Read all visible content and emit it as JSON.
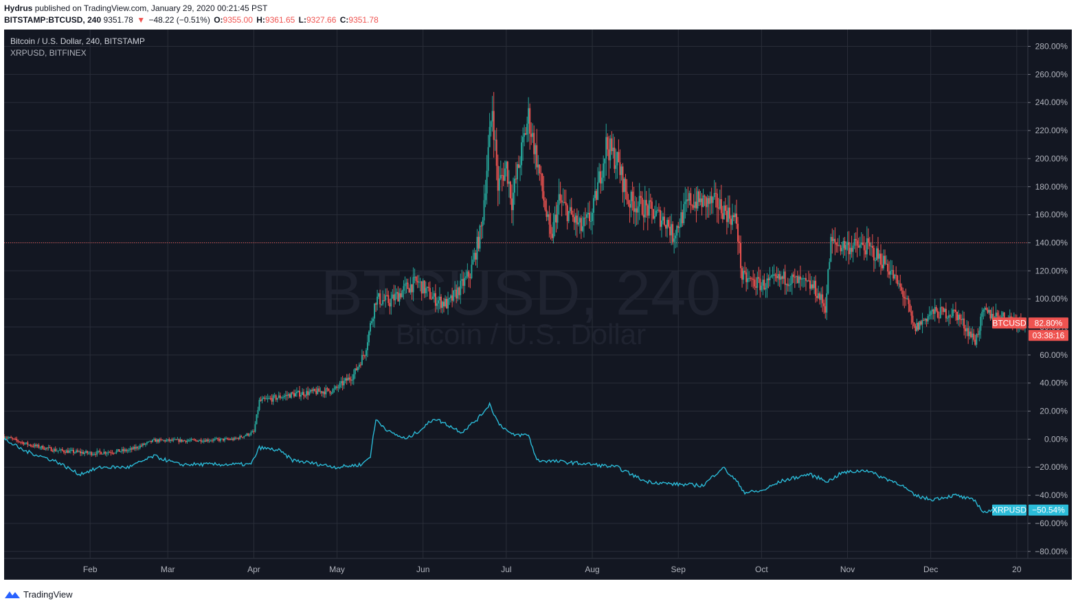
{
  "header": {
    "author": "Hydrus",
    "published_text": "published on TradingView.com, January 29, 2020 00:21:45 PST",
    "symbol_interval": "BITSTAMP:BTCUSD, 240",
    "last_price": "9351.78",
    "change_arrow": "▼",
    "change": "−48.22 (−0.51%)",
    "open_label": "O:",
    "open": "9355.00",
    "high_label": "H:",
    "high": "9361.65",
    "low_label": "L:",
    "low": "9327.66",
    "close_label": "C:",
    "close": "9351.78"
  },
  "legend": {
    "main": "Bitcoin / U.S. Dollar, 240, BITSTAMP",
    "compare": "XRPUSD, BITFINEX"
  },
  "watermark": {
    "line1": "BTCUSD, 240",
    "line2": "Bitcoin / U.S. Dollar"
  },
  "colors": {
    "background": "#131722",
    "grid": "#2a2e39",
    "text": "#b2b5be",
    "btc_up": "#26a69a",
    "btc_down": "#ef5350",
    "xrp": "#2bbcd9",
    "price_line": "#ef5350"
  },
  "footer": {
    "brand": "TradingView",
    "icon": "tradingview-logo-icon"
  },
  "chart_data": [
    {
      "type": "candlestick",
      "series_name": "BTCUSD",
      "y_unit": "percent change",
      "ylim": [
        -85,
        292
      ],
      "y_ticks": [
        "280.00%",
        "260.00%",
        "240.00%",
        "220.00%",
        "200.00%",
        "180.00%",
        "160.00%",
        "140.00%",
        "120.00%",
        "100.00%",
        "80.00%",
        "60.00%",
        "40.00%",
        "20.00%",
        "0.00%",
        "−20.00%",
        "−40.00%",
        "−60.00%",
        "−80.00%"
      ],
      "y_tick_values": [
        280,
        260,
        240,
        220,
        200,
        180,
        160,
        140,
        120,
        100,
        80,
        60,
        40,
        20,
        0,
        -20,
        -40,
        -60,
        -80
      ],
      "x_range": [
        "2019-01-01",
        "2020-01-05"
      ],
      "x_ticks": [
        {
          "label": "Feb",
          "date": "2019-02-01"
        },
        {
          "label": "Mar",
          "date": "2019-03-01"
        },
        {
          "label": "Apr",
          "date": "2019-04-01"
        },
        {
          "label": "May",
          "date": "2019-05-01"
        },
        {
          "label": "Jun",
          "date": "2019-06-01"
        },
        {
          "label": "Jul",
          "date": "2019-07-01"
        },
        {
          "label": "Aug",
          "date": "2019-08-01"
        },
        {
          "label": "Sep",
          "date": "2019-09-01"
        },
        {
          "label": "Oct",
          "date": "2019-10-01"
        },
        {
          "label": "Nov",
          "date": "2019-11-01"
        },
        {
          "label": "Dec",
          "date": "2019-12-01"
        },
        {
          "label": "20",
          "date": "2020-01-01"
        }
      ],
      "grid": true,
      "horizontal_line": 140,
      "last_label": "BTCUSD",
      "last_value_label": "82.80%",
      "countdown_label": "03:38:16",
      "last_value": 82.8,
      "points": [
        {
          "date": "2019-01-01",
          "value": 2
        },
        {
          "date": "2019-01-10",
          "value": -4
        },
        {
          "date": "2019-01-20",
          "value": -8
        },
        {
          "date": "2019-02-01",
          "value": -10
        },
        {
          "date": "2019-02-15",
          "value": -8
        },
        {
          "date": "2019-02-24",
          "value": -1
        },
        {
          "date": "2019-03-10",
          "value": -1
        },
        {
          "date": "2019-03-25",
          "value": 0
        },
        {
          "date": "2019-04-01",
          "value": 5
        },
        {
          "date": "2019-04-03",
          "value": 27
        },
        {
          "date": "2019-04-15",
          "value": 32
        },
        {
          "date": "2019-04-30",
          "value": 35
        },
        {
          "date": "2019-05-07",
          "value": 46
        },
        {
          "date": "2019-05-11",
          "value": 62
        },
        {
          "date": "2019-05-15",
          "value": 100
        },
        {
          "date": "2019-05-20",
          "value": 98
        },
        {
          "date": "2019-05-26",
          "value": 108
        },
        {
          "date": "2019-05-30",
          "value": 112
        },
        {
          "date": "2019-06-05",
          "value": 100
        },
        {
          "date": "2019-06-10",
          "value": 96
        },
        {
          "date": "2019-06-18",
          "value": 118
        },
        {
          "date": "2019-06-22",
          "value": 150
        },
        {
          "date": "2019-06-26",
          "value": 237
        },
        {
          "date": "2019-06-28",
          "value": 180
        },
        {
          "date": "2019-07-01",
          "value": 195
        },
        {
          "date": "2019-07-03",
          "value": 170
        },
        {
          "date": "2019-07-09",
          "value": 230
        },
        {
          "date": "2019-07-12",
          "value": 200
        },
        {
          "date": "2019-07-17",
          "value": 142
        },
        {
          "date": "2019-07-20",
          "value": 170
        },
        {
          "date": "2019-07-28",
          "value": 150
        },
        {
          "date": "2019-08-01",
          "value": 160
        },
        {
          "date": "2019-08-06",
          "value": 210
        },
        {
          "date": "2019-08-10",
          "value": 198
        },
        {
          "date": "2019-08-14",
          "value": 170
        },
        {
          "date": "2019-08-20",
          "value": 165
        },
        {
          "date": "2019-08-28",
          "value": 155
        },
        {
          "date": "2019-08-30",
          "value": 145
        },
        {
          "date": "2019-09-05",
          "value": 170
        },
        {
          "date": "2019-09-15",
          "value": 168
        },
        {
          "date": "2019-09-22",
          "value": 155
        },
        {
          "date": "2019-09-24",
          "value": 115
        },
        {
          "date": "2019-10-01",
          "value": 110
        },
        {
          "date": "2019-10-10",
          "value": 115
        },
        {
          "date": "2019-10-20",
          "value": 108
        },
        {
          "date": "2019-10-24",
          "value": 94
        },
        {
          "date": "2019-10-26",
          "value": 140
        },
        {
          "date": "2019-10-30",
          "value": 138
        },
        {
          "date": "2019-11-08",
          "value": 137
        },
        {
          "date": "2019-11-15",
          "value": 125
        },
        {
          "date": "2019-11-22",
          "value": 100
        },
        {
          "date": "2019-11-25",
          "value": 78
        },
        {
          "date": "2019-12-01",
          "value": 90
        },
        {
          "date": "2019-12-10",
          "value": 90
        },
        {
          "date": "2019-12-17",
          "value": 70
        },
        {
          "date": "2019-12-20",
          "value": 90
        },
        {
          "date": "2020-01-01",
          "value": 85
        },
        {
          "date": "2020-01-04",
          "value": 82.8
        }
      ]
    },
    {
      "type": "line",
      "series_name": "XRPUSD",
      "y_unit": "percent change",
      "last_label": "XRPUSD",
      "last_value_label": "−50.54%",
      "last_value": -50.54,
      "points": [
        {
          "date": "2019-01-01",
          "value": 0
        },
        {
          "date": "2019-01-08",
          "value": -8
        },
        {
          "date": "2019-01-20",
          "value": -16
        },
        {
          "date": "2019-01-28",
          "value": -25
        },
        {
          "date": "2019-02-05",
          "value": -20
        },
        {
          "date": "2019-02-15",
          "value": -20
        },
        {
          "date": "2019-02-24",
          "value": -12
        },
        {
          "date": "2019-03-05",
          "value": -18
        },
        {
          "date": "2019-03-20",
          "value": -18
        },
        {
          "date": "2019-03-31",
          "value": -18
        },
        {
          "date": "2019-04-03",
          "value": -6
        },
        {
          "date": "2019-04-10",
          "value": -8
        },
        {
          "date": "2019-04-15",
          "value": -15
        },
        {
          "date": "2019-04-25",
          "value": -18
        },
        {
          "date": "2019-05-01",
          "value": -20
        },
        {
          "date": "2019-05-10",
          "value": -18
        },
        {
          "date": "2019-05-13",
          "value": -12
        },
        {
          "date": "2019-05-15",
          "value": 14
        },
        {
          "date": "2019-05-20",
          "value": 5
        },
        {
          "date": "2019-05-26",
          "value": 0
        },
        {
          "date": "2019-06-01",
          "value": 8
        },
        {
          "date": "2019-06-05",
          "value": 15
        },
        {
          "date": "2019-06-10",
          "value": 10
        },
        {
          "date": "2019-06-15",
          "value": 5
        },
        {
          "date": "2019-06-21",
          "value": 15
        },
        {
          "date": "2019-06-25",
          "value": 25
        },
        {
          "date": "2019-06-28",
          "value": 12
        },
        {
          "date": "2019-07-03",
          "value": 3
        },
        {
          "date": "2019-07-09",
          "value": 3
        },
        {
          "date": "2019-07-12",
          "value": -15
        },
        {
          "date": "2019-07-20",
          "value": -16
        },
        {
          "date": "2019-08-01",
          "value": -18
        },
        {
          "date": "2019-08-10",
          "value": -20
        },
        {
          "date": "2019-08-15",
          "value": -25
        },
        {
          "date": "2019-08-20",
          "value": -30
        },
        {
          "date": "2019-08-30",
          "value": -32
        },
        {
          "date": "2019-09-10",
          "value": -33
        },
        {
          "date": "2019-09-17",
          "value": -20
        },
        {
          "date": "2019-09-22",
          "value": -30
        },
        {
          "date": "2019-09-25",
          "value": -38
        },
        {
          "date": "2019-10-01",
          "value": -37
        },
        {
          "date": "2019-10-08",
          "value": -30
        },
        {
          "date": "2019-10-18",
          "value": -25
        },
        {
          "date": "2019-10-25",
          "value": -30
        },
        {
          "date": "2019-10-30",
          "value": -24
        },
        {
          "date": "2019-11-08",
          "value": -22
        },
        {
          "date": "2019-11-12",
          "value": -26
        },
        {
          "date": "2019-11-20",
          "value": -32
        },
        {
          "date": "2019-11-25",
          "value": -40
        },
        {
          "date": "2019-12-01",
          "value": -43
        },
        {
          "date": "2019-12-10",
          "value": -40
        },
        {
          "date": "2019-12-17",
          "value": -44
        },
        {
          "date": "2019-12-20",
          "value": -52
        },
        {
          "date": "2020-01-01",
          "value": -50
        },
        {
          "date": "2020-01-04",
          "value": -50.54
        }
      ]
    }
  ]
}
